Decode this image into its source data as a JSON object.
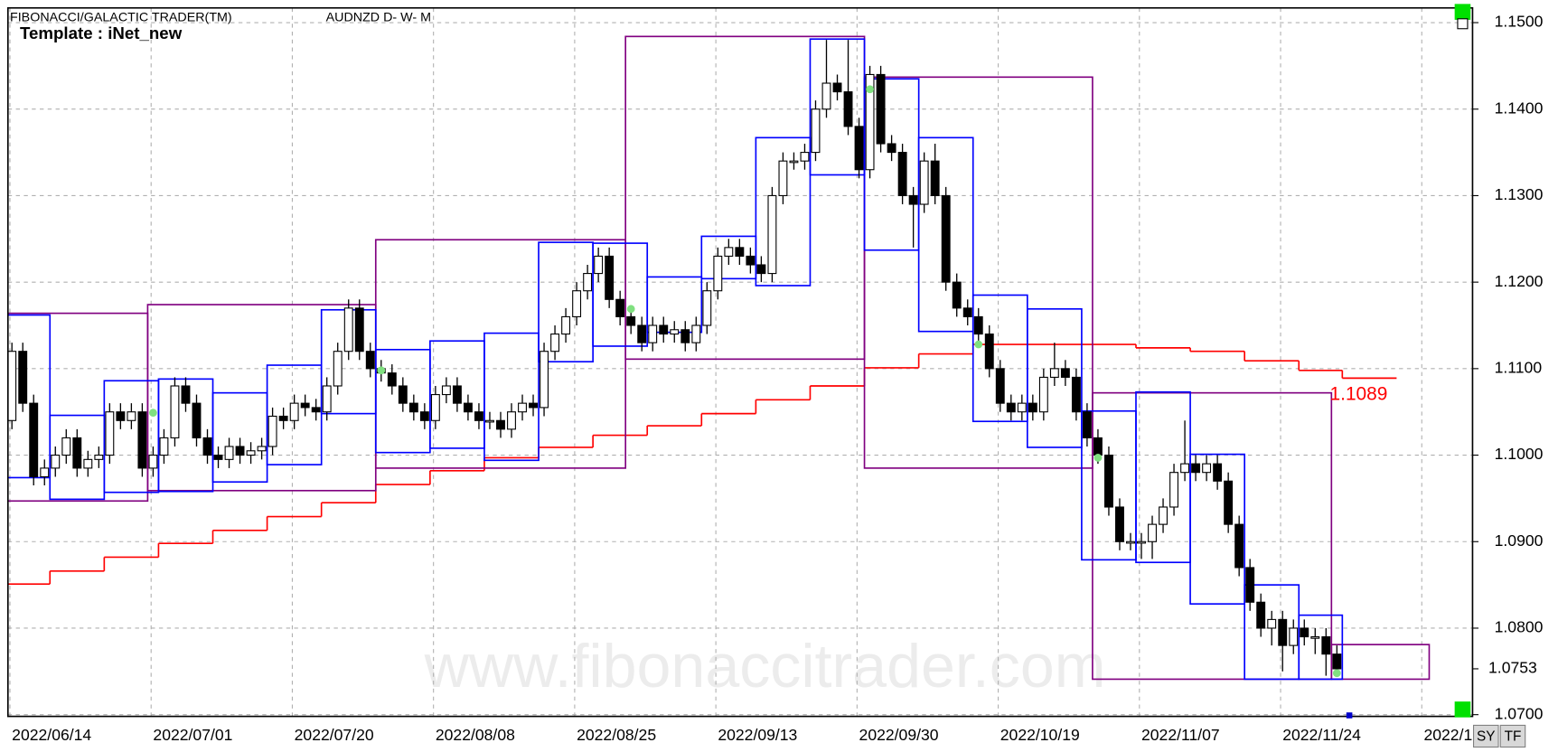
{
  "header": {
    "title": "FIBONACCI/GALACTIC TRADER(TM)",
    "symbol": "AUDNZD D- W- M",
    "template": "Template : iNet_new"
  },
  "watermark": "www.fibonaccitrader.com",
  "buttons": [
    "SY",
    "TF"
  ],
  "chart_data": {
    "type": "candlestick",
    "categories": [
      "2022/06/14",
      null,
      null,
      null,
      null,
      null,
      null,
      null,
      null,
      null,
      null,
      null,
      null,
      "2022/07/01",
      null,
      null,
      null,
      null,
      null,
      null,
      null,
      null,
      null,
      null,
      null,
      null,
      "2022/07/20",
      null,
      null,
      null,
      null,
      null,
      null,
      null,
      null,
      null,
      null,
      null,
      null,
      "2022/08/08",
      null,
      null,
      null,
      null,
      null,
      null,
      null,
      null,
      null,
      null,
      null,
      null,
      "2022/08/25",
      null,
      null,
      null,
      null,
      null,
      null,
      null,
      null,
      null,
      null,
      null,
      null,
      "2022/09/13",
      null,
      null,
      null,
      null,
      null,
      null,
      null,
      null,
      null,
      null,
      null,
      null,
      "2022/09/30",
      null,
      null,
      null,
      null,
      null,
      null,
      null,
      null,
      null,
      null,
      null,
      null,
      "2022/10/19",
      null,
      null,
      null,
      null,
      null,
      null,
      null,
      null,
      null,
      null,
      null,
      null,
      "2022/11/07",
      null,
      null,
      null,
      null,
      null,
      null,
      null,
      null,
      null,
      null,
      null,
      null,
      "2022/11/24",
      null,
      null,
      null,
      null,
      null,
      null,
      null,
      null,
      null,
      null,
      null,
      null,
      "2022/1"
    ],
    "open": [
      1.104,
      1.112,
      1.106,
      1.0975,
      1.0985,
      1.1,
      1.102,
      1.0985,
      1.0995,
      1.1,
      1.105,
      1.104,
      1.105,
      1.0985,
      1.1,
      1.102,
      1.108,
      1.106,
      1.102,
      1.1,
      1.0995,
      1.101,
      1.1,
      1.1005,
      1.101,
      1.1045,
      1.104,
      1.106,
      1.1055,
      1.105,
      1.108,
      1.112,
      1.117,
      1.112,
      1.11,
      1.1095,
      1.108,
      1.106,
      1.105,
      1.104,
      1.107,
      1.108,
      1.106,
      1.105,
      1.104,
      1.104,
      1.103,
      1.105,
      1.106,
      1.1055,
      1.112,
      1.114,
      1.116,
      1.119,
      1.121,
      1.123,
      1.118,
      1.116,
      1.115,
      1.113,
      1.115,
      1.114,
      1.1145,
      1.113,
      1.115,
      1.119,
      1.123,
      1.124,
      1.123,
      1.122,
      1.121,
      1.13,
      1.134,
      1.134,
      1.135,
      1.14,
      1.143,
      1.142,
      1.138,
      1.133,
      1.144,
      1.136,
      1.135,
      1.13,
      1.129,
      1.134,
      1.13,
      1.12,
      1.117,
      1.116,
      1.114,
      1.11,
      1.106,
      1.105,
      1.106,
      1.105,
      1.109,
      1.11,
      1.109,
      1.105,
      1.102,
      1.1,
      1.094,
      1.09,
      1.09,
      1.09,
      1.092,
      1.094,
      1.098,
      1.099,
      1.098,
      1.099,
      1.097,
      1.092,
      1.087,
      1.083,
      1.08,
      1.081,
      1.078,
      1.08,
      1.079,
      1.079,
      1.077,
      null,
      null,
      null,
      null,
      null,
      null,
      null,
      null
    ],
    "high": [
      1.113,
      1.113,
      1.107,
      1.0995,
      1.101,
      1.103,
      1.103,
      1.1005,
      1.101,
      1.106,
      1.106,
      1.106,
      1.106,
      1.101,
      1.103,
      1.109,
      1.109,
      1.107,
      1.103,
      1.101,
      1.102,
      1.102,
      1.1015,
      1.102,
      1.1055,
      1.1055,
      1.107,
      1.107,
      1.1065,
      1.109,
      1.113,
      1.118,
      1.118,
      1.113,
      1.111,
      1.1105,
      1.109,
      1.107,
      1.106,
      1.108,
      1.109,
      1.109,
      1.107,
      1.106,
      1.105,
      1.105,
      1.106,
      1.107,
      1.107,
      1.113,
      1.115,
      1.117,
      1.12,
      1.122,
      1.124,
      1.124,
      1.119,
      1.117,
      1.116,
      1.116,
      1.116,
      1.1155,
      1.1155,
      1.116,
      1.12,
      1.124,
      1.125,
      1.125,
      1.124,
      1.123,
      1.131,
      1.135,
      1.135,
      1.136,
      1.141,
      1.148,
      1.144,
      1.148,
      1.139,
      1.145,
      1.145,
      1.137,
      1.136,
      1.131,
      1.135,
      1.136,
      1.131,
      1.121,
      1.118,
      1.117,
      1.115,
      1.111,
      1.107,
      1.107,
      1.107,
      1.11,
      1.113,
      1.111,
      1.11,
      1.106,
      1.103,
      1.101,
      1.095,
      1.091,
      1.091,
      1.093,
      1.095,
      1.099,
      1.104,
      1.1,
      1.1,
      1.1,
      1.098,
      1.093,
      1.088,
      1.084,
      1.082,
      1.082,
      1.081,
      1.081,
      1.08,
      1.08,
      1.078,
      null,
      null,
      null,
      null,
      null,
      null,
      null,
      null
    ],
    "low": [
      1.103,
      1.105,
      1.0965,
      1.0965,
      1.0975,
      1.099,
      1.0975,
      1.0975,
      1.0985,
      1.099,
      1.103,
      1.103,
      1.0975,
      1.0975,
      1.099,
      1.101,
      1.105,
      1.101,
      1.099,
      1.0985,
      1.0985,
      1.099,
      1.099,
      1.0995,
      1.1,
      1.103,
      1.103,
      1.1045,
      1.104,
      1.104,
      1.107,
      1.111,
      1.111,
      1.109,
      1.1085,
      1.107,
      1.105,
      1.104,
      1.103,
      1.103,
      1.106,
      1.105,
      1.104,
      1.103,
      1.103,
      1.102,
      1.102,
      1.104,
      1.1045,
      1.1045,
      1.111,
      1.113,
      1.115,
      1.118,
      1.12,
      1.117,
      1.115,
      1.114,
      1.112,
      1.112,
      1.113,
      1.113,
      1.112,
      1.112,
      1.114,
      1.118,
      1.122,
      1.122,
      1.121,
      1.12,
      1.12,
      1.129,
      1.133,
      1.133,
      1.134,
      1.139,
      1.141,
      1.137,
      1.132,
      1.132,
      1.135,
      1.134,
      1.129,
      1.124,
      1.128,
      1.129,
      1.119,
      1.116,
      1.115,
      1.113,
      1.109,
      1.105,
      1.104,
      1.104,
      1.104,
      1.104,
      1.108,
      1.108,
      1.104,
      1.101,
      1.099,
      1.093,
      1.089,
      1.089,
      1.088,
      1.088,
      1.091,
      1.093,
      1.097,
      1.097,
      1.097,
      1.096,
      1.091,
      1.086,
      1.082,
      1.079,
      1.078,
      1.075,
      1.077,
      1.078,
      1.077,
      1.0745,
      1.0745,
      null,
      null,
      null,
      null,
      null,
      null,
      null,
      null
    ],
    "close": [
      1.112,
      1.106,
      1.0975,
      1.0985,
      1.1,
      1.102,
      1.0985,
      1.0995,
      1.1,
      1.105,
      1.104,
      1.105,
      1.0985,
      1.1,
      1.102,
      1.108,
      1.106,
      1.102,
      1.1,
      1.0995,
      1.101,
      1.1,
      1.1005,
      1.101,
      1.1045,
      1.104,
      1.106,
      1.1055,
      1.105,
      1.108,
      1.112,
      1.117,
      1.112,
      1.11,
      1.1095,
      1.108,
      1.106,
      1.105,
      1.104,
      1.107,
      1.108,
      1.106,
      1.105,
      1.104,
      1.104,
      1.103,
      1.105,
      1.106,
      1.1055,
      1.112,
      1.114,
      1.116,
      1.119,
      1.121,
      1.123,
      1.118,
      1.116,
      1.115,
      1.113,
      1.115,
      1.114,
      1.1145,
      1.113,
      1.115,
      1.119,
      1.123,
      1.124,
      1.123,
      1.122,
      1.121,
      1.13,
      1.134,
      1.134,
      1.135,
      1.14,
      1.143,
      1.142,
      1.138,
      1.133,
      1.144,
      1.136,
      1.135,
      1.13,
      1.129,
      1.134,
      1.13,
      1.12,
      1.117,
      1.116,
      1.114,
      1.11,
      1.106,
      1.105,
      1.106,
      1.105,
      1.109,
      1.11,
      1.109,
      1.105,
      1.102,
      1.1,
      1.094,
      1.09,
      1.09,
      1.09,
      1.092,
      1.094,
      1.098,
      1.099,
      1.098,
      1.099,
      1.097,
      1.092,
      1.087,
      1.083,
      1.08,
      1.081,
      1.078,
      1.08,
      1.079,
      1.079,
      1.077,
      1.0753,
      null,
      null,
      null,
      null,
      null,
      null,
      null,
      null
    ],
    "up_color": "#ffffff",
    "down_color": "#000000",
    "ylim": [
      1.0698,
      1.1517
    ],
    "yticks": [
      {
        "value": 1.07,
        "label": "1.0700"
      },
      {
        "value": 1.08,
        "label": "1.0800"
      },
      {
        "value": 1.09,
        "label": "1.0900"
      },
      {
        "value": 1.1,
        "label": "1.1000"
      },
      {
        "value": 1.11,
        "label": "1.1100"
      },
      {
        "value": 1.12,
        "label": "1.1200"
      },
      {
        "value": 1.13,
        "label": "1.1300"
      },
      {
        "value": 1.14,
        "label": "1.1400"
      },
      {
        "value": 1.15,
        "label": "1.1500"
      }
    ],
    "grid": true,
    "last_price": {
      "value": 1.0753,
      "label": "1.0753"
    },
    "weekly_boxes": {
      "color": "#0000ff",
      "boxes": [
        {
          "start": 0,
          "end": 3,
          "high": 1.1162,
          "low": 1.0974
        },
        {
          "start": 4,
          "end": 8,
          "high": 1.1046,
          "low": 1.0949
        },
        {
          "start": 9,
          "end": 13,
          "high": 1.1086,
          "low": 1.0957
        },
        {
          "start": 14,
          "end": 18,
          "high": 1.1088,
          "low": 1.0958
        },
        {
          "start": 19,
          "end": 23,
          "high": 1.1072,
          "low": 1.0969
        },
        {
          "start": 24,
          "end": 28,
          "high": 1.1104,
          "low": 1.0989
        },
        {
          "start": 29,
          "end": 33,
          "high": 1.1168,
          "low": 1.1048
        },
        {
          "start": 34,
          "end": 38,
          "high": 1.1122,
          "low": 1.1003
        },
        {
          "start": 39,
          "end": 43,
          "high": 1.1132,
          "low": 1.1008
        },
        {
          "start": 44,
          "end": 48,
          "high": 1.1141,
          "low": 1.0994
        },
        {
          "start": 49,
          "end": 53,
          "high": 1.1246,
          "low": 1.1108
        },
        {
          "start": 54,
          "end": 58,
          "high": 1.1245,
          "low": 1.1126
        },
        {
          "start": 59,
          "end": 63,
          "high": 1.1206,
          "low": 1.1142
        },
        {
          "start": 64,
          "end": 68,
          "high": 1.1253,
          "low": 1.1204
        },
        {
          "start": 69,
          "end": 73,
          "high": 1.1367,
          "low": 1.1196
        },
        {
          "start": 74,
          "end": 78,
          "high": 1.1481,
          "low": 1.1324
        },
        {
          "start": 79,
          "end": 83,
          "high": 1.1435,
          "low": 1.1237
        },
        {
          "start": 84,
          "end": 88,
          "high": 1.1367,
          "low": 1.1143
        },
        {
          "start": 89,
          "end": 93,
          "high": 1.1185,
          "low": 1.1039
        },
        {
          "start": 94,
          "end": 98,
          "high": 1.1169,
          "low": 1.1009
        },
        {
          "start": 99,
          "end": 103,
          "high": 1.1051,
          "low": 1.0879
        },
        {
          "start": 104,
          "end": 108,
          "high": 1.1073,
          "low": 1.0876
        },
        {
          "start": 109,
          "end": 113,
          "high": 1.1001,
          "low": 1.0828
        },
        {
          "start": 114,
          "end": 118,
          "high": 1.085,
          "low": 1.0741
        },
        {
          "start": 119,
          "end": 122,
          "high": 1.0815,
          "low": 1.0741
        }
      ]
    },
    "monthly_boxes": {
      "color": "#800080",
      "boxes": [
        {
          "start": 0,
          "end": 12,
          "high": 1.1164,
          "low": 1.0947
        },
        {
          "start": 13,
          "end": 33,
          "high": 1.1174,
          "low": 1.0959
        },
        {
          "start": 34,
          "end": 56,
          "high": 1.1249,
          "low": 1.0985
        },
        {
          "start": 57,
          "end": 78,
          "high": 1.1484,
          "low": 1.1111
        },
        {
          "start": 79,
          "end": 99,
          "high": 1.1437,
          "low": 1.0985
        },
        {
          "start": 100,
          "end": 121,
          "high": 1.1072,
          "low": 1.0741
        },
        {
          "start": 122,
          "end": 130,
          "high": 1.0781,
          "low": 1.0741
        }
      ]
    },
    "step_line": {
      "color": "#ff0000",
      "value_label": "1.1089",
      "segments": [
        {
          "start": 0,
          "end": 3,
          "value": 1.0851
        },
        {
          "start": 4,
          "end": 8,
          "value": 1.0866
        },
        {
          "start": 9,
          "end": 13,
          "value": 1.0882
        },
        {
          "start": 14,
          "end": 18,
          "value": 1.0898
        },
        {
          "start": 19,
          "end": 23,
          "value": 1.0913
        },
        {
          "start": 24,
          "end": 28,
          "value": 1.0929
        },
        {
          "start": 29,
          "end": 33,
          "value": 1.0945
        },
        {
          "start": 34,
          "end": 38,
          "value": 1.0966
        },
        {
          "start": 39,
          "end": 43,
          "value": 1.0982
        },
        {
          "start": 44,
          "end": 48,
          "value": 1.0997
        },
        {
          "start": 49,
          "end": 53,
          "value": 1.1009
        },
        {
          "start": 54,
          "end": 58,
          "value": 1.1023
        },
        {
          "start": 59,
          "end": 63,
          "value": 1.1034
        },
        {
          "start": 64,
          "end": 68,
          "value": 1.1048
        },
        {
          "start": 69,
          "end": 73,
          "value": 1.1064
        },
        {
          "start": 74,
          "end": 78,
          "value": 1.108
        },
        {
          "start": 79,
          "end": 83,
          "value": 1.1101
        },
        {
          "start": 84,
          "end": 88,
          "value": 1.1117
        },
        {
          "start": 89,
          "end": 93,
          "value": 1.1128
        },
        {
          "start": 94,
          "end": 98,
          "value": 1.1128
        },
        {
          "start": 99,
          "end": 103,
          "value": 1.1128
        },
        {
          "start": 104,
          "end": 108,
          "value": 1.1124
        },
        {
          "start": 109,
          "end": 113,
          "value": 1.112
        },
        {
          "start": 114,
          "end": 118,
          "value": 1.1109
        },
        {
          "start": 119,
          "end": 122,
          "value": 1.1098
        },
        {
          "start": 123,
          "end": 127,
          "value": 1.1089
        }
      ]
    },
    "signals": {
      "color": "#80e080",
      "x": [
        13,
        34,
        57,
        79,
        89,
        100,
        122
      ],
      "values": [
        1.1049,
        1.1098,
        1.1169,
        1.1423,
        1.1128,
        1.0997,
        1.0748
      ]
    }
  }
}
